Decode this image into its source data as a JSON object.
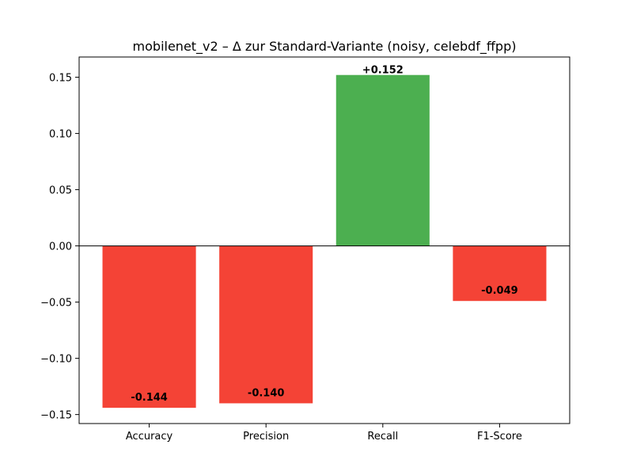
{
  "chart_data": {
    "type": "bar",
    "title": "mobilenet_v2 – Δ zur Standard-Variante (noisy, celebdf_ffpp)",
    "xlabel": "",
    "ylabel": "",
    "categories": [
      "Accuracy",
      "Precision",
      "Recall",
      "F1-Score"
    ],
    "values": [
      -0.144,
      -0.14,
      0.152,
      -0.049
    ],
    "data_labels": [
      "-0.144",
      "-0.140",
      "+0.152",
      "-0.049"
    ],
    "ylim": [
      -0.158,
      0.168
    ],
    "yticks": [
      -0.15,
      -0.1,
      -0.05,
      0.0,
      0.05,
      0.1,
      0.15
    ],
    "ytick_labels": [
      "−0.15",
      "−0.10",
      "−0.05",
      "0.00",
      "0.05",
      "0.10",
      "0.15"
    ],
    "zero_line": true,
    "grid": false,
    "colors": {
      "positive": "#4caf50",
      "negative": "#f44336"
    }
  }
}
